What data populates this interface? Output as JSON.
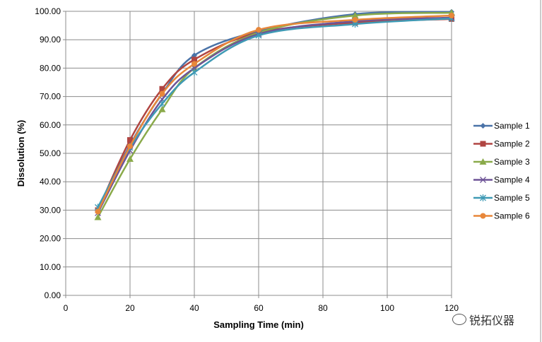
{
  "chart_data": {
    "type": "line",
    "title": "",
    "xlabel": "Sampling Time (min)",
    "ylabel": "Dissolution  (%)",
    "xlim": [
      0,
      120
    ],
    "ylim": [
      0,
      100
    ],
    "xticks": [
      0,
      20,
      40,
      60,
      80,
      100,
      120
    ],
    "yticks": [
      "0.00",
      "10.00",
      "20.00",
      "30.00",
      "40.00",
      "50.00",
      "60.00",
      "70.00",
      "80.00",
      "90.00",
      "100.00"
    ],
    "grid": true,
    "legend_position": "right",
    "x": [
      10,
      20,
      30,
      40,
      60,
      90,
      120
    ],
    "series": [
      {
        "name": "Sample 1",
        "color": "#4a73a8",
        "marker": "diamond",
        "values": [
          30.0,
          53.0,
          71.0,
          84.5,
          93.0,
          99.0,
          99.8
        ]
      },
      {
        "name": "Sample 2",
        "color": "#b04542",
        "marker": "square",
        "values": [
          30.0,
          54.7,
          72.7,
          83.0,
          92.5,
          96.0,
          97.3
        ]
      },
      {
        "name": "Sample 3",
        "color": "#8aaa4a",
        "marker": "triangle",
        "values": [
          27.5,
          48.0,
          65.5,
          80.0,
          92.5,
          98.5,
          99.5
        ]
      },
      {
        "name": "Sample 4",
        "color": "#6e5497",
        "marker": "x",
        "values": [
          29.0,
          51.0,
          69.0,
          80.0,
          92.0,
          96.5,
          97.8
        ]
      },
      {
        "name": "Sample 5",
        "color": "#3f9ab5",
        "marker": "star",
        "values": [
          31.0,
          52.0,
          67.5,
          78.5,
          91.5,
          95.5,
          97.5
        ]
      },
      {
        "name": "Sample 6",
        "color": "#e8873a",
        "marker": "circle",
        "values": [
          29.5,
          52.5,
          71.0,
          81.5,
          93.5,
          97.0,
          98.5
        ]
      }
    ]
  },
  "watermark": "锐拓仪器"
}
